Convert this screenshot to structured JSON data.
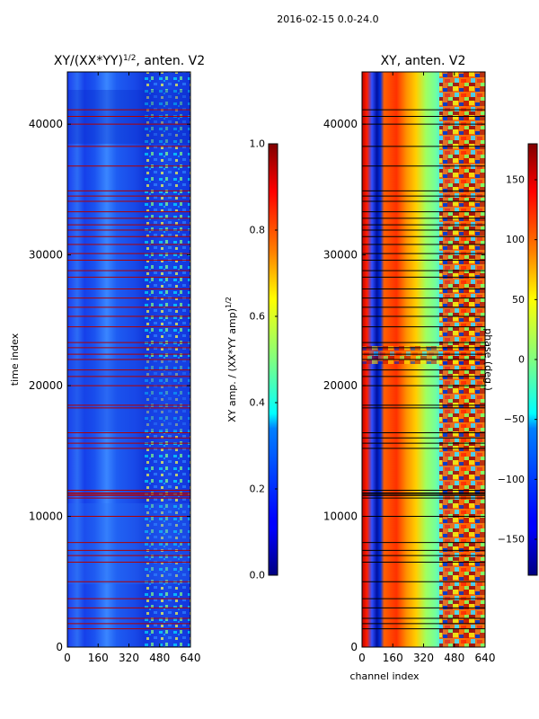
{
  "figure": {
    "suptitle": "2016-02-15 0.0-24.0",
    "shared_xlabel": "channel index"
  },
  "chart_data": [
    {
      "type": "heatmap",
      "title_main": "XY/(XX*YY)",
      "title_sup": "1/2",
      "title_tail": ", anten. V2",
      "xlabel": "",
      "ylabel": "time index",
      "xlim": [
        0,
        640
      ],
      "ylim": [
        0,
        44000
      ],
      "x_ticks": [
        0,
        160,
        320,
        480,
        640
      ],
      "y_ticks": [
        0,
        10000,
        20000,
        30000,
        40000
      ],
      "colorbar": {
        "label_main": "XY amp. / (XX*YY amp)",
        "label_sup": "1/2",
        "range": [
          0.0,
          1.0
        ],
        "ticks": [
          "0.0",
          "0.2",
          "0.4",
          "0.6",
          "0.8",
          "1.0"
        ]
      },
      "flagged_time_rows": [
        1400,
        1800,
        2200,
        3000,
        3700,
        5000,
        6500,
        7000,
        7400,
        8000,
        10000,
        11400,
        11600,
        11700,
        11800,
        12000,
        15200,
        15600,
        16000,
        16400,
        18300,
        18500,
        20000,
        20700,
        21200,
        22000,
        22400,
        22900,
        23300,
        24500,
        25300,
        26000,
        26700,
        27400,
        28300,
        28800,
        29600,
        30100,
        30800,
        31400,
        31900,
        32300,
        32800,
        33300,
        34100,
        34500,
        34900,
        36800,
        38300,
        40000,
        40600,
        41100
      ]
    },
    {
      "type": "heatmap",
      "title_main": "XY, anten. V2",
      "xlabel": "channel index",
      "ylabel": "",
      "xlim": [
        0,
        640
      ],
      "ylim": [
        0,
        44000
      ],
      "x_ticks": [
        0,
        160,
        320,
        480,
        640
      ],
      "y_ticks": [
        0,
        10000,
        20000,
        30000,
        40000
      ],
      "colorbar": {
        "label_main": "phase (deg.)",
        "range": [
          -180,
          180
        ],
        "ticks": [
          "−150",
          "−100",
          "−50",
          "0",
          "50",
          "100",
          "150"
        ]
      },
      "flagged_time_rows": [
        1400,
        1800,
        2200,
        3000,
        3700,
        5000,
        6500,
        7000,
        7400,
        8000,
        10000,
        11400,
        11600,
        11700,
        11800,
        12000,
        15200,
        15600,
        16000,
        16400,
        18300,
        18500,
        20000,
        20700,
        21200,
        22000,
        22400,
        22900,
        23300,
        24500,
        25300,
        26000,
        26700,
        27400,
        28300,
        28800,
        29600,
        30100,
        30800,
        31400,
        31900,
        32300,
        32800,
        33300,
        34100,
        34500,
        34900,
        36800,
        38300,
        40000,
        40600,
        41100
      ]
    }
  ]
}
